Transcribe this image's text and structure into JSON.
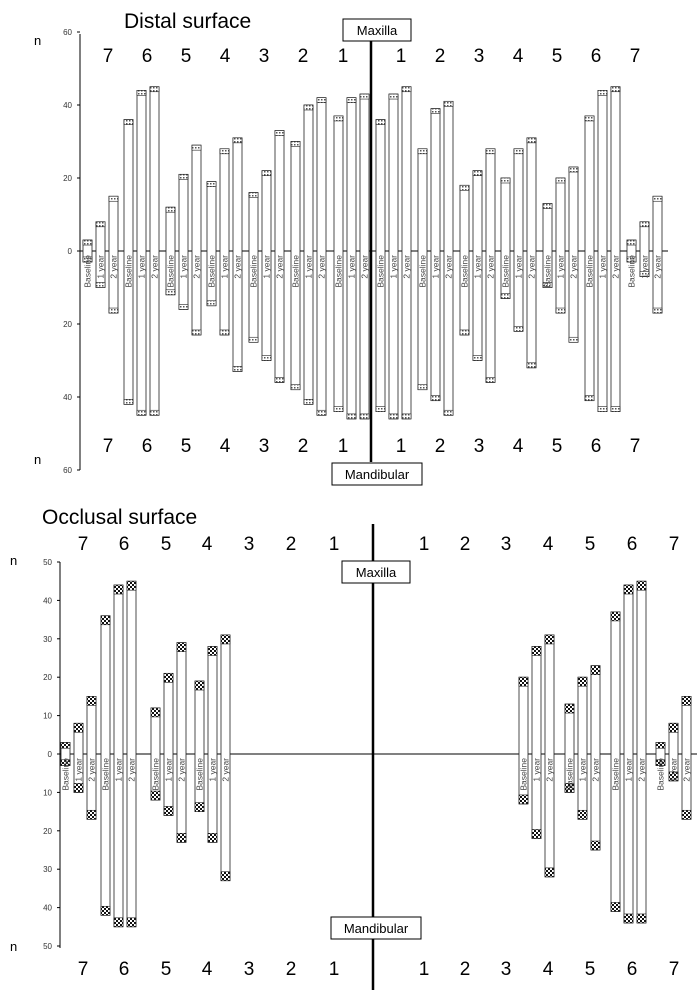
{
  "chart_data": [
    {
      "type": "bar",
      "title": "Distal surface",
      "axis_label": "n",
      "top_label": "Maxilla",
      "bottom_label": "Mandibular",
      "ylim": [
        -60,
        60
      ],
      "ytick_labels": [
        "60",
        "40",
        "20",
        "0",
        "20",
        "40",
        "60"
      ],
      "ytick_values": [
        60,
        40,
        20,
        0,
        -20,
        -40,
        -60
      ],
      "tooth_labels_left": [
        "7",
        "6",
        "5",
        "4",
        "3",
        "2",
        "1"
      ],
      "tooth_labels_right": [
        "1",
        "2",
        "3",
        "4",
        "5",
        "6",
        "7"
      ],
      "time_points": [
        "Baseline",
        "1 year",
        "2 year"
      ],
      "values_note": "Per tooth, per time point: [maxilla n, mandibular n]; mandibular shown below zero.",
      "teeth_left": [
        [
          [
            3,
            3
          ],
          [
            8,
            10
          ],
          [
            15,
            17
          ]
        ],
        [
          [
            36,
            42
          ],
          [
            44,
            45
          ],
          [
            45,
            45
          ]
        ],
        [
          [
            12,
            12
          ],
          [
            21,
            16
          ],
          [
            29,
            23
          ]
        ],
        [
          [
            19,
            15
          ],
          [
            28,
            23
          ],
          [
            31,
            33
          ]
        ],
        [
          [
            16,
            25
          ],
          [
            22,
            30
          ],
          [
            33,
            36
          ]
        ],
        [
          [
            30,
            38
          ],
          [
            40,
            42
          ],
          [
            42,
            45
          ]
        ],
        [
          [
            37,
            44
          ],
          [
            42,
            46
          ],
          [
            43,
            46
          ]
        ]
      ],
      "teeth_right": [
        [
          [
            36,
            44
          ],
          [
            43,
            46
          ],
          [
            45,
            46
          ]
        ],
        [
          [
            28,
            38
          ],
          [
            39,
            41
          ],
          [
            41,
            45
          ]
        ],
        [
          [
            18,
            23
          ],
          [
            22,
            30
          ],
          [
            28,
            36
          ]
        ],
        [
          [
            20,
            13
          ],
          [
            28,
            22
          ],
          [
            31,
            32
          ]
        ],
        [
          [
            13,
            10
          ],
          [
            20,
            17
          ],
          [
            23,
            25
          ]
        ],
        [
          [
            37,
            41
          ],
          [
            44,
            44
          ],
          [
            45,
            44
          ]
        ],
        [
          [
            3,
            3
          ],
          [
            8,
            7
          ],
          [
            15,
            17
          ]
        ]
      ]
    },
    {
      "type": "bar",
      "title": "Occlusal surface",
      "axis_label": "n",
      "top_label": "Maxilla",
      "bottom_label": "Mandibular",
      "ylim": [
        -50,
        50
      ],
      "ytick_labels": [
        "50",
        "40",
        "30",
        "20",
        "10",
        "0",
        "10",
        "20",
        "30",
        "40",
        "50"
      ],
      "ytick_values": [
        50,
        40,
        30,
        20,
        10,
        0,
        -10,
        -20,
        -30,
        -40,
        -50
      ],
      "tooth_labels_left": [
        "7",
        "6",
        "5",
        "4",
        "3",
        "2",
        "1"
      ],
      "tooth_labels_right": [
        "1",
        "2",
        "3",
        "4",
        "5",
        "6",
        "7"
      ],
      "time_points": [
        "Baseline",
        "1 year",
        "2 year"
      ],
      "values_note": "Per tooth, per time point: [maxilla n, mandibular n]; mandibular shown below zero.",
      "teeth_left": [
        [
          [
            3,
            3
          ],
          [
            8,
            10
          ],
          [
            15,
            17
          ]
        ],
        [
          [
            36,
            42
          ],
          [
            44,
            45
          ],
          [
            45,
            45
          ]
        ],
        [
          [
            12,
            12
          ],
          [
            21,
            16
          ],
          [
            29,
            23
          ]
        ],
        [
          [
            19,
            15
          ],
          [
            28,
            23
          ],
          [
            31,
            33
          ]
        ],
        [
          [
            0,
            0
          ],
          [
            0,
            0
          ],
          [
            0,
            0
          ]
        ],
        [
          [
            0,
            0
          ],
          [
            0,
            0
          ],
          [
            0,
            0
          ]
        ],
        [
          [
            0,
            0
          ],
          [
            0,
            0
          ],
          [
            0,
            0
          ]
        ]
      ],
      "teeth_right": [
        [
          [
            0,
            0
          ],
          [
            0,
            0
          ],
          [
            0,
            0
          ]
        ],
        [
          [
            0,
            0
          ],
          [
            0,
            0
          ],
          [
            0,
            0
          ]
        ],
        [
          [
            20,
            13
          ],
          [
            28,
            22
          ],
          [
            31,
            32
          ]
        ],
        [
          [
            13,
            10
          ],
          [
            20,
            17
          ],
          [
            23,
            25
          ]
        ],
        [
          [
            37,
            41
          ],
          [
            44,
            44
          ],
          [
            45,
            44
          ]
        ],
        [
          [
            3,
            3
          ],
          [
            8,
            7
          ],
          [
            15,
            17
          ]
        ],
        [
          [
            0,
            0
          ],
          [
            0,
            0
          ],
          [
            0,
            0
          ]
        ]
      ]
    }
  ]
}
